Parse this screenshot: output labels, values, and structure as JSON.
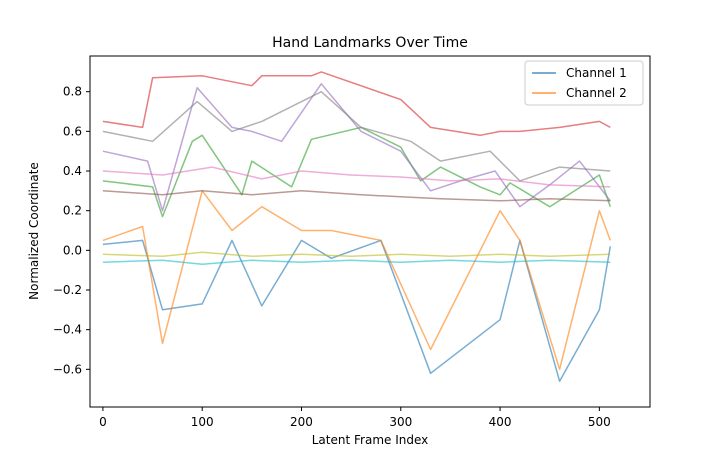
{
  "chart_data": {
    "type": "line",
    "title": "Hand Landmarks Over Time",
    "xlabel": "Latent Frame Index",
    "ylabel": "Normalized Coordinate",
    "xlim": [
      -13,
      551
    ],
    "ylim": [
      -0.79,
      0.98
    ],
    "xticks": [
      0,
      100,
      200,
      300,
      400,
      500
    ],
    "xtick_labels": [
      "0",
      "100",
      "200",
      "300",
      "400",
      "500"
    ],
    "yticks": [
      -0.6,
      -0.4,
      -0.2,
      0.0,
      0.2,
      0.4,
      0.6,
      0.8
    ],
    "ytick_labels": [
      "−0.6",
      "−0.4",
      "−0.2",
      "0.0",
      "0.2",
      "0.4",
      "0.6",
      "0.8"
    ],
    "grid": false,
    "legend_position": "top-right",
    "legend": [
      {
        "label": "Channel 1",
        "color": "#1f77b4"
      },
      {
        "label": "Channel 2",
        "color": "#ff7f0e"
      }
    ],
    "x_range": [
      0,
      511
    ],
    "line_alpha": 0.6,
    "palette": [
      "#1f77b4",
      "#ff7f0e",
      "#2ca02c",
      "#d62728",
      "#9467bd",
      "#8c564b",
      "#e377c2",
      "#7f7f7f",
      "#bcbd22",
      "#17becf"
    ],
    "series": [
      {
        "name": "Channel 1",
        "x": [
          0,
          40,
          60,
          100,
          130,
          160,
          200,
          230,
          280,
          330,
          400,
          420,
          460,
          500,
          511
        ],
        "values": [
          0.03,
          0.05,
          -0.3,
          -0.27,
          0.05,
          -0.28,
          0.05,
          -0.04,
          0.05,
          -0.62,
          -0.35,
          0.05,
          -0.66,
          -0.3,
          0.02
        ]
      },
      {
        "name": "Channel 2",
        "x": [
          0,
          40,
          60,
          100,
          130,
          160,
          200,
          230,
          280,
          330,
          400,
          420,
          460,
          500,
          511
        ],
        "values": [
          0.05,
          0.12,
          -0.47,
          0.3,
          0.1,
          0.22,
          0.1,
          0.1,
          0.05,
          -0.5,
          0.2,
          0.05,
          -0.6,
          0.2,
          0.05
        ]
      },
      {
        "x": [
          0,
          50,
          60,
          90,
          100,
          140,
          150,
          190,
          210,
          260,
          300,
          320,
          340,
          380,
          400,
          410,
          450,
          500,
          511
        ],
        "values": [
          0.35,
          0.32,
          0.17,
          0.55,
          0.58,
          0.28,
          0.45,
          0.32,
          0.56,
          0.62,
          0.52,
          0.35,
          0.42,
          0.32,
          0.28,
          0.34,
          0.22,
          0.38,
          0.22
        ]
      },
      {
        "x": [
          0,
          40,
          50,
          100,
          150,
          160,
          210,
          220,
          300,
          330,
          380,
          400,
          420,
          460,
          500,
          511
        ],
        "values": [
          0.65,
          0.62,
          0.87,
          0.88,
          0.83,
          0.88,
          0.88,
          0.9,
          0.76,
          0.62,
          0.58,
          0.6,
          0.6,
          0.62,
          0.65,
          0.62
        ]
      },
      {
        "x": [
          0,
          45,
          60,
          95,
          130,
          150,
          180,
          220,
          260,
          300,
          330,
          360,
          395,
          420,
          450,
          480,
          511
        ],
        "values": [
          0.5,
          0.45,
          0.2,
          0.82,
          0.62,
          0.6,
          0.55,
          0.84,
          0.6,
          0.5,
          0.3,
          0.35,
          0.4,
          0.22,
          0.33,
          0.45,
          0.25
        ]
      },
      {
        "x": [
          0,
          60,
          100,
          150,
          200,
          260,
          300,
          340,
          400,
          450,
          511
        ],
        "values": [
          0.3,
          0.28,
          0.3,
          0.28,
          0.3,
          0.28,
          0.27,
          0.26,
          0.25,
          0.26,
          0.25
        ]
      },
      {
        "x": [
          0,
          60,
          110,
          160,
          200,
          250,
          300,
          350,
          400,
          450,
          511
        ],
        "values": [
          0.4,
          0.38,
          0.42,
          0.36,
          0.4,
          0.38,
          0.37,
          0.35,
          0.36,
          0.33,
          0.32
        ]
      },
      {
        "x": [
          0,
          50,
          95,
          130,
          160,
          220,
          260,
          310,
          340,
          390,
          420,
          460,
          511
        ],
        "values": [
          0.6,
          0.55,
          0.75,
          0.6,
          0.65,
          0.8,
          0.62,
          0.55,
          0.45,
          0.5,
          0.35,
          0.42,
          0.4
        ]
      },
      {
        "x": [
          0,
          60,
          100,
          150,
          200,
          250,
          300,
          350,
          400,
          450,
          511
        ],
        "values": [
          -0.02,
          -0.03,
          -0.01,
          -0.03,
          -0.02,
          -0.03,
          -0.02,
          -0.03,
          -0.02,
          -0.03,
          -0.02
        ]
      },
      {
        "x": [
          0,
          60,
          100,
          150,
          200,
          250,
          300,
          350,
          400,
          450,
          511
        ],
        "values": [
          -0.06,
          -0.05,
          -0.07,
          -0.05,
          -0.06,
          -0.05,
          -0.06,
          -0.05,
          -0.06,
          -0.05,
          -0.06
        ]
      }
    ]
  }
}
